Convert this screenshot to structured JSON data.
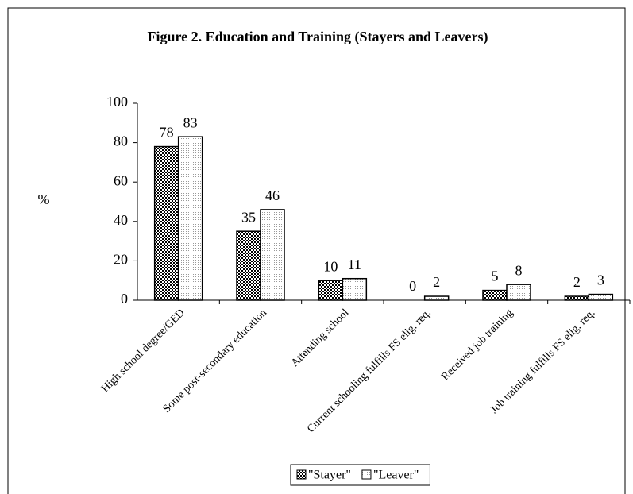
{
  "chart_data": {
    "type": "bar",
    "title": "Figure 2. Education and Training (Stayers and Leavers)",
    "ylabel": "%",
    "categories": [
      "High school degree/GED",
      "Some post-secondary education",
      "Attending school",
      "Current schooling fulfills FS elig. req.",
      "Received job training",
      "Job training fulfills FS elig. req."
    ],
    "series": [
      {
        "name": "\"Stayer\"",
        "color": "#404040",
        "values": [
          78,
          35,
          10,
          0,
          5,
          2
        ]
      },
      {
        "name": "\"Leaver\"",
        "color": "#e8e8e8",
        "values": [
          83,
          46,
          11,
          2,
          8,
          3
        ]
      }
    ],
    "ylim": [
      0,
      100
    ],
    "yticks": [
      0,
      20,
      40,
      60,
      80,
      100
    ],
    "grid": false,
    "legend": "bottom"
  }
}
